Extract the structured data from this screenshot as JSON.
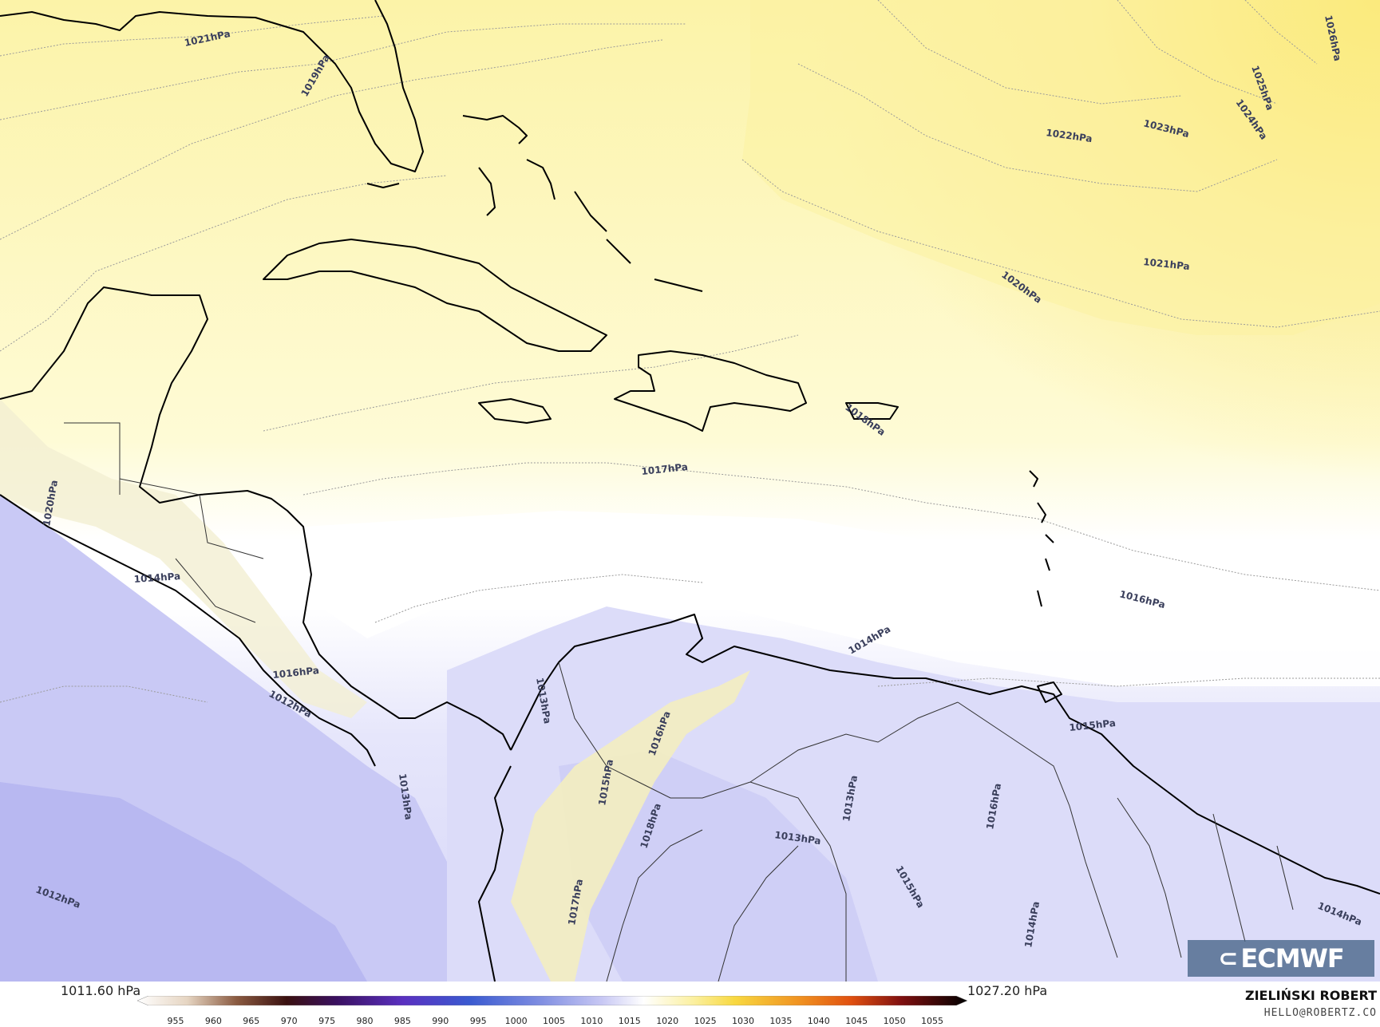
{
  "map": {
    "isobar_labels": [
      {
        "id": "1021a",
        "text": "1021hPa"
      },
      {
        "id": "1019a",
        "text": "1019hPa"
      },
      {
        "id": "1022a",
        "text": "1022hPa"
      },
      {
        "id": "1023a",
        "text": "1023hPa"
      },
      {
        "id": "1024a",
        "text": "1024hPa"
      },
      {
        "id": "1025a",
        "text": "1025hPa"
      },
      {
        "id": "1026a",
        "text": "1026hPa"
      },
      {
        "id": "1021b",
        "text": "1021hPa"
      },
      {
        "id": "1020a",
        "text": "1020hPa"
      },
      {
        "id": "1018a",
        "text": "1018hPa"
      },
      {
        "id": "1017a",
        "text": "1017hPa"
      },
      {
        "id": "1016a",
        "text": "1016hPa"
      },
      {
        "id": "1015a",
        "text": "1015hPa"
      },
      {
        "id": "1014a",
        "text": "1014hPa"
      },
      {
        "id": "1016b",
        "text": "1016hPa"
      },
      {
        "id": "1013a",
        "text": "1013hPa"
      },
      {
        "id": "1013b",
        "text": "1013hPa"
      },
      {
        "id": "1013c",
        "text": "1013hPa"
      },
      {
        "id": "1013d",
        "text": "1013hPa"
      },
      {
        "id": "1016c",
        "text": "1016hPa"
      },
      {
        "id": "1015b",
        "text": "1015hPa"
      },
      {
        "id": "1014b",
        "text": "1014hPa"
      },
      {
        "id": "1014c",
        "text": "1014hPa"
      },
      {
        "id": "1012a",
        "text": "1012hPa"
      },
      {
        "id": "1020b",
        "text": "1020hPa"
      },
      {
        "id": "1014d",
        "text": "1014hPa"
      },
      {
        "id": "1016d",
        "text": "1016hPa"
      },
      {
        "id": "1012b",
        "text": "1012hPa"
      },
      {
        "id": "1015c",
        "text": "1015hPa"
      },
      {
        "id": "1017b",
        "text": "1017hPa"
      },
      {
        "id": "1018b",
        "text": "1018hPa"
      }
    ]
  },
  "colors": {
    "high_pressure": "#fbe97a",
    "mid_pressure": "#fefbd6",
    "neutral": "#ffffff",
    "low_pressure": "#c6c6f4"
  },
  "legend": {
    "min_label": "1011.60 hPa",
    "max_label": "1027.20 hPa",
    "ticks": [
      "955",
      "960",
      "965",
      "970",
      "975",
      "980",
      "985",
      "990",
      "995",
      "1000",
      "1005",
      "1010",
      "1015",
      "1020",
      "1025",
      "1030",
      "1035",
      "1040",
      "1045",
      "1050",
      "1055"
    ]
  },
  "branding": {
    "logo_text": "ECMWF",
    "author": "ZIELIŃSKI ROBERT",
    "email": "HELLO@ROBERTZ.CO"
  }
}
